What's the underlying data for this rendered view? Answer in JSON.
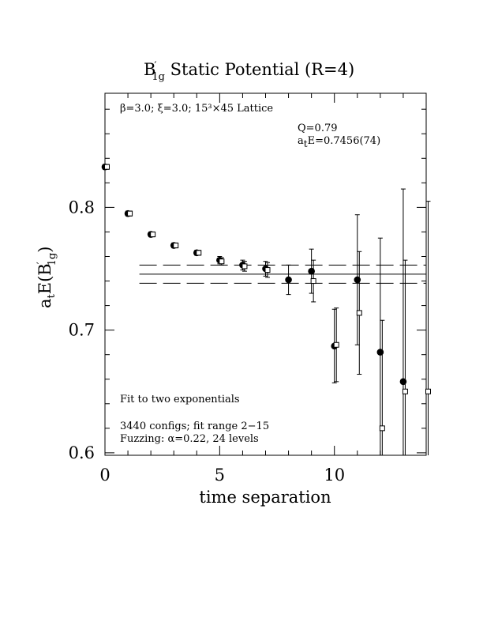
{
  "chart_data": {
    "type": "scatter",
    "title_main": "B",
    "title_prime": "′",
    "title_sub": "1g",
    "title_rest": " Static Potential (R=4)",
    "xlabel": "time separation",
    "ylabel_prefix": "a",
    "ylabel_prefix_sub": "t",
    "ylabel_mid": "E(B",
    "ylabel_prime": "′",
    "ylabel_sub": "1g",
    "ylabel_suffix": ")",
    "xlim": [
      0,
      14
    ],
    "ylim": [
      0.598,
      0.893
    ],
    "x_ticks": [
      {
        "value": 0,
        "label": "0"
      },
      {
        "value": 5,
        "label": "5"
      },
      {
        "value": 10,
        "label": "10"
      }
    ],
    "y_ticks": [
      {
        "value": 0.6,
        "label": "0.6"
      },
      {
        "value": 0.7,
        "label": "0.7"
      },
      {
        "value": 0.8,
        "label": "0.8"
      }
    ],
    "legend_line1": "β=3.0; ξ=3.0; 15³×45 Lattice",
    "fit_q": "Q=0.79",
    "fit_e_prefix": "a",
    "fit_e_sub": "t",
    "fit_e_rest": "E=0.7456(74)",
    "note_fit": "Fit to two exponentials",
    "note_configs": "3440 configs; fit range 2−15",
    "note_fuzzing": "Fuzzing: α=0.22, 24 levels",
    "fit": {
      "value": 0.7456,
      "error": 0.0074,
      "t_start": 1.5,
      "t_end": 14
    },
    "series": [
      {
        "marker": "filled-circle",
        "points": [
          {
            "x": 0,
            "y": 0.833,
            "err": 0.002
          },
          {
            "x": 1,
            "y": 0.795,
            "err": 0.002
          },
          {
            "x": 2,
            "y": 0.778,
            "err": 0.002
          },
          {
            "x": 3,
            "y": 0.769,
            "err": 0.002
          },
          {
            "x": 4,
            "y": 0.763,
            "err": 0.002
          },
          {
            "x": 5,
            "y": 0.757,
            "err": 0.003
          },
          {
            "x": 6,
            "y": 0.753,
            "err": 0.004
          },
          {
            "x": 7,
            "y": 0.75,
            "err": 0.006
          },
          {
            "x": 8,
            "y": 0.741,
            "err": 0.012
          },
          {
            "x": 9,
            "y": 0.748,
            "err": 0.018
          },
          {
            "x": 10,
            "y": 0.687,
            "err": 0.03
          },
          {
            "x": 11,
            "y": 0.741,
            "err": 0.053
          },
          {
            "x": 12,
            "y": 0.682,
            "err": 0.093
          },
          {
            "x": 13,
            "y": 0.658,
            "err": 0.157
          }
        ]
      },
      {
        "marker": "open-square",
        "points": [
          {
            "x": 0,
            "y": 0.833,
            "err": 0.002
          },
          {
            "x": 1,
            "y": 0.795,
            "err": 0.002
          },
          {
            "x": 2,
            "y": 0.778,
            "err": 0.002
          },
          {
            "x": 3,
            "y": 0.769,
            "err": 0.002
          },
          {
            "x": 4,
            "y": 0.763,
            "err": 0.002
          },
          {
            "x": 5,
            "y": 0.756,
            "err": 0.003
          },
          {
            "x": 6,
            "y": 0.752,
            "err": 0.004
          },
          {
            "x": 7,
            "y": 0.749,
            "err": 0.006
          },
          {
            "x": 9,
            "y": 0.74,
            "err": 0.017
          },
          {
            "x": 10,
            "y": 0.688,
            "err": 0.03
          },
          {
            "x": 11,
            "y": 0.714,
            "err": 0.05
          },
          {
            "x": 12,
            "y": 0.62,
            "err": 0.088
          },
          {
            "x": 13,
            "y": 0.65,
            "err": 0.107
          },
          {
            "x": 14,
            "y": 0.65,
            "err": 0.155
          }
        ]
      }
    ]
  }
}
